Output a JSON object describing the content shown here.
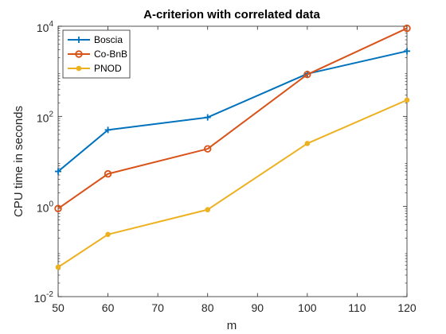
{
  "chart_data": {
    "type": "line",
    "title": "A-criterion with correlated data",
    "xlabel": "m",
    "ylabel": "CPU time in seconds",
    "x": [
      50,
      60,
      80,
      100,
      120
    ],
    "xlim": [
      50,
      120
    ],
    "x_ticks": [
      50,
      60,
      70,
      80,
      90,
      100,
      110,
      120
    ],
    "y_scale": "log",
    "ylim": [
      0.01,
      10000
    ],
    "y_ticks": [
      {
        "value": 0.01,
        "base": "10",
        "exp": "-2"
      },
      {
        "value": 1,
        "base": "10",
        "exp": "0"
      },
      {
        "value": 100,
        "base": "10",
        "exp": "2"
      },
      {
        "value": 10000,
        "base": "10",
        "exp": "4"
      }
    ],
    "grid": false,
    "legend_position": "top-left",
    "series": [
      {
        "name": "Boscia",
        "marker": "plus",
        "color": "#0072BD",
        "values": [
          6,
          50,
          95,
          880,
          2800
        ]
      },
      {
        "name": "Co-BnB",
        "marker": "circle",
        "color": "#D95319",
        "values": [
          0.9,
          5.3,
          19,
          850,
          9000
        ]
      },
      {
        "name": "PNOD",
        "marker": "dot",
        "color": "#EDB120",
        "values": [
          0.045,
          0.24,
          0.85,
          25,
          230
        ]
      }
    ]
  }
}
